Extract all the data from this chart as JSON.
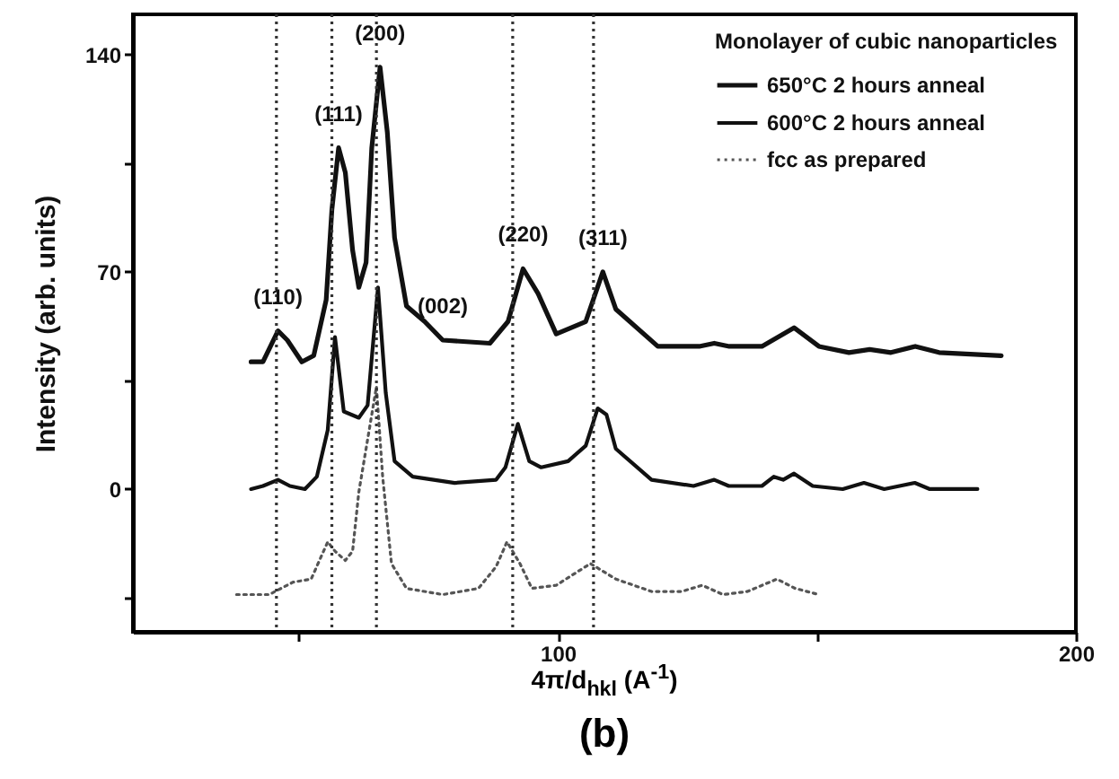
{
  "chart_data": {
    "type": "line",
    "xlabel": "4π/d$_{hkl}$ (A$^{-1}$)",
    "ylabel": "Intensity (arb. units)",
    "legend_title": "Monolayer of cubic nanoparticles",
    "legend": "top right",
    "grid": false,
    "xlim": [
      18,
      200
    ],
    "xticks": [
      {
        "value": 50,
        "label": null
      },
      100,
      {
        "value": 150,
        "label": null
      },
      200
    ],
    "ylim": [
      -46,
      153
    ],
    "yticks": [
      {
        "value": -35,
        "label": null
      },
      0,
      {
        "value": 35,
        "label": null
      },
      70,
      {
        "value": 105,
        "label": null
      },
      140
    ],
    "series": [
      {
        "name": "650°C 2 hours anneal",
        "color": "#111111",
        "line_style": "solid",
        "x": [
          40.8,
          43.1,
          46,
          47.8,
          50.6,
          52.9,
          55.3,
          56.4,
          57.7,
          59,
          60.4,
          61.6,
          63,
          64.1,
          65.7,
          67.1,
          68.5,
          70.8,
          74.3,
          77.8,
          86.9,
          90.4,
          93.3,
          96.2,
          99.7,
          105.4,
          108.7,
          111.2,
          119.3,
          127.3,
          130.2,
          133.1,
          139.4,
          145.6,
          150.4,
          156.2,
          160.2,
          164.3,
          169,
          173.6,
          185.6
        ],
        "values": [
          41,
          41,
          51,
          48,
          41,
          43,
          61,
          90,
          110,
          102,
          77,
          65,
          73,
          110,
          136,
          115,
          81,
          59,
          54,
          48,
          47,
          54,
          71,
          63,
          50,
          54,
          70,
          58,
          46,
          46,
          47,
          46,
          46,
          52,
          46,
          44,
          45,
          44,
          46,
          44,
          43
        ]
      },
      {
        "name": "600°C 2 hours anneal",
        "color": "#111111",
        "line_style": "solid",
        "x": [
          40.8,
          43.1,
          46,
          48.3,
          51.2,
          53.5,
          55.6,
          57,
          58.7,
          61.6,
          63.3,
          65.3,
          66.8,
          68.5,
          72,
          80.1,
          88.1,
          89.9,
          92.3,
          94.5,
          96.8,
          102,
          105.4,
          107.7,
          109.4,
          111.2,
          118.1,
          126.2,
          130.2,
          133,
          139.4,
          141.7,
          143.5,
          145.6,
          149.2,
          155,
          159.1,
          163,
          168.9,
          171.8,
          181
        ],
        "values": [
          0,
          1,
          3,
          1,
          0,
          4,
          19,
          49,
          25,
          23,
          27,
          65,
          31,
          9,
          4,
          2,
          3,
          7,
          21,
          9,
          7,
          9,
          14,
          26,
          24,
          13,
          3,
          1,
          3,
          1,
          1,
          4,
          3,
          5,
          1,
          0,
          2,
          0,
          2,
          0,
          0
        ]
      },
      {
        "name": "fcc as prepared",
        "color": "#555555",
        "line_style": "dotted",
        "x": [
          38,
          44.3,
          48.9,
          52.4,
          55.6,
          57,
          59,
          60.4,
          61.6,
          63,
          65,
          66.2,
          67.9,
          70.8,
          77.8,
          84.7,
          88.1,
          90.2,
          92.7,
          95,
          99.7,
          106.3,
          111.2,
          118.1,
          123.9,
          127.9,
          131.9,
          136.6,
          142.3,
          145.8,
          150.4
        ],
        "values": [
          -34,
          -34,
          -30,
          -29,
          -17,
          -20,
          -23,
          -20,
          -1,
          13,
          33,
          4,
          -24,
          -32,
          -34,
          -32,
          -25,
          -17,
          -24,
          -32,
          -31,
          -24,
          -29,
          -33,
          -33,
          -31,
          -34,
          -33,
          -29,
          -32,
          -34
        ]
      }
    ],
    "ref_lines": [
      {
        "axis": "x",
        "value": 45.7,
        "line_style": "dotted"
      },
      {
        "axis": "x",
        "value": 56.4,
        "line_style": "dotted"
      },
      {
        "axis": "x",
        "value": 65,
        "line_style": "dotted"
      },
      {
        "axis": "x",
        "value": 91.3,
        "line_style": "dotted"
      },
      {
        "axis": "x",
        "value": 106.9,
        "line_style": "dotted"
      }
    ],
    "annotations": [
      {
        "text": "(110)",
        "x": 46,
        "y": 51
      },
      {
        "text": "(111)",
        "x": 57.7,
        "y": 110
      },
      {
        "text": "(200)",
        "x": 65.7,
        "y": 136
      },
      {
        "text": "(002)",
        "x": 77.8,
        "y": 48
      },
      {
        "text": "(220)",
        "x": 93.3,
        "y": 71
      },
      {
        "text": "(311)",
        "x": 108.7,
        "y": 70
      },
      "(b)"
    ]
  }
}
